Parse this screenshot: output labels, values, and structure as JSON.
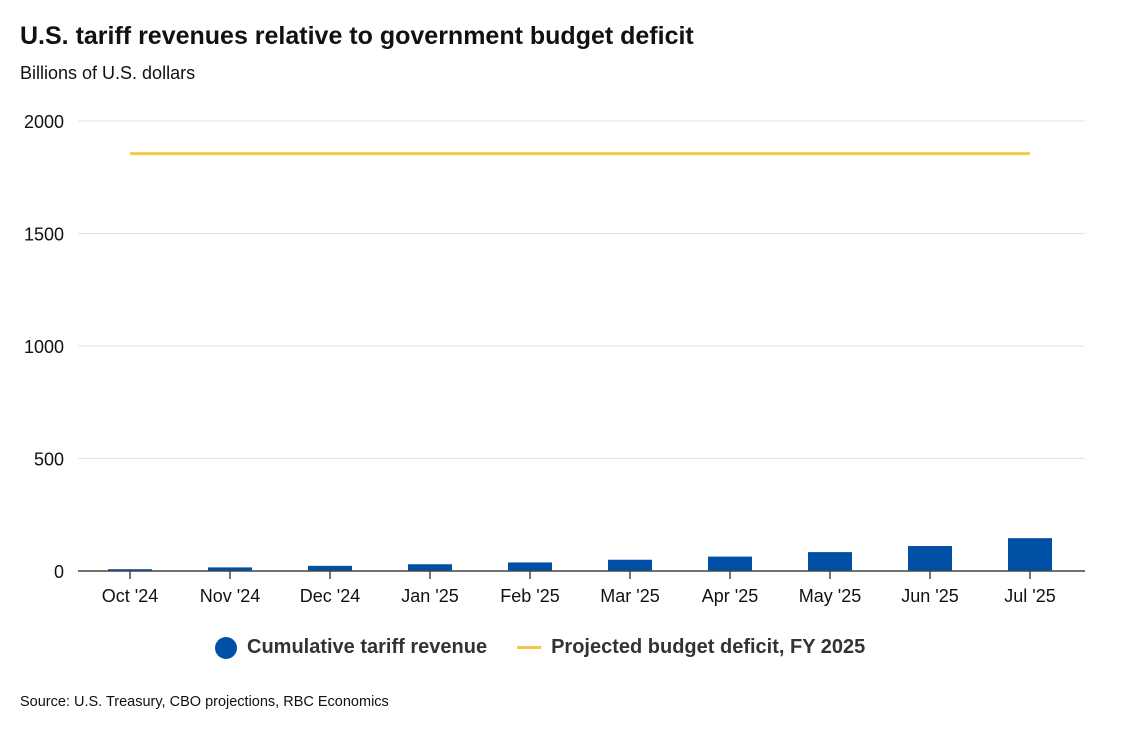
{
  "chart_data": {
    "type": "bar",
    "title": "U.S. tariff revenues relative to government budget deficit",
    "subtitle": "Billions of U.S. dollars",
    "xlabel": "",
    "ylabel": "",
    "ylim": [
      0,
      2000
    ],
    "yticks": [
      0,
      500,
      1000,
      1500,
      2000
    ],
    "categories": [
      "Oct '24",
      "Nov '24",
      "Dec '24",
      "Jan '25",
      "Feb '25",
      "Mar '25",
      "Apr '25",
      "May '25",
      "Jun '25",
      "Jul '25"
    ],
    "series": [
      {
        "name": "Cumulative tariff revenue",
        "type": "bar",
        "color": "#0051A5",
        "values": [
          8,
          16,
          23,
          30,
          38,
          50,
          64,
          84,
          111,
          146
        ]
      },
      {
        "name": "Projected budget deficit, FY 2025",
        "type": "line",
        "color": "#F7C744",
        "values": [
          1855,
          1855,
          1855,
          1855,
          1855,
          1855,
          1855,
          1855,
          1855,
          1855
        ]
      }
    ],
    "grid": true,
    "legend": "bottom",
    "source": "Source: U.S. Treasury, CBO projections, RBC Economics"
  }
}
